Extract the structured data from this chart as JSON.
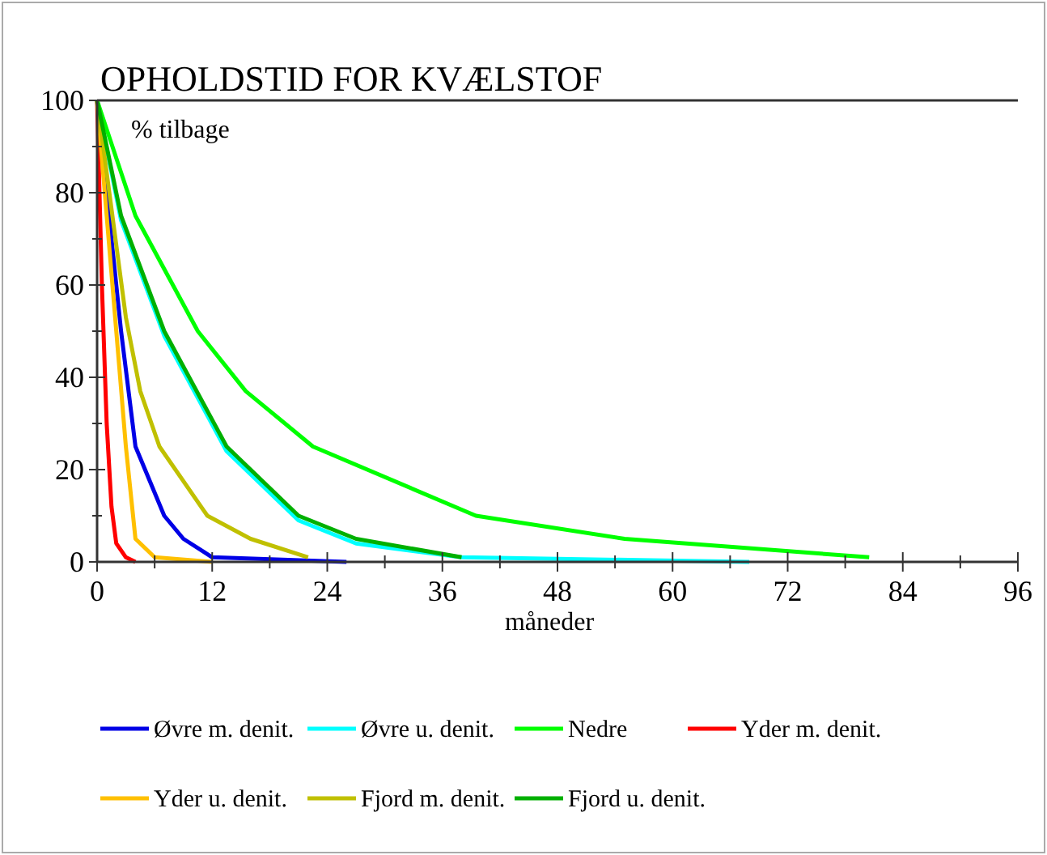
{
  "chart_data": {
    "type": "line",
    "title": "OPHOLDSTID FOR KVÆLSTOF",
    "ylabel": "% tilbage",
    "xlabel": "måneder",
    "xlim": [
      0,
      96
    ],
    "xticks": [
      0,
      {
        "value": 6,
        "label": null
      },
      12,
      {
        "value": 18,
        "label": null
      },
      24,
      {
        "value": 30,
        "label": null
      },
      36,
      {
        "value": 42,
        "label": null
      },
      48,
      {
        "value": 54,
        "label": null
      },
      60,
      {
        "value": 66,
        "label": null
      },
      72,
      {
        "value": 78,
        "label": null
      },
      84,
      {
        "value": 90,
        "label": null
      },
      96
    ],
    "ylim": [
      0,
      100
    ],
    "yticks": [
      0,
      {
        "value": 10,
        "label": null
      },
      20,
      {
        "value": 30,
        "label": null
      },
      40,
      {
        "value": 50,
        "label": null
      },
      60,
      {
        "value": 70,
        "label": null
      },
      80,
      {
        "value": 90,
        "label": null
      },
      100
    ],
    "grid": false,
    "legend": "bottom",
    "marker": "none",
    "line_style": "solid",
    "series": [
      {
        "name": "Øvre m. denit.",
        "color": "#0000e6",
        "x": [
          0,
          1,
          2.5,
          4,
          7,
          9,
          12,
          26
        ],
        "values": [
          100,
          80,
          50,
          25,
          10,
          5,
          1,
          0
        ]
      },
      {
        "name": "Øvre u. denit.",
        "color": "#00ffff",
        "x": [
          0,
          2.5,
          7,
          13.5,
          21,
          27,
          38,
          68
        ],
        "values": [
          100,
          74,
          49,
          24,
          9,
          4,
          1,
          0
        ]
      },
      {
        "name": "Nedre",
        "color": "#00ff00",
        "x": [
          0,
          4,
          10.5,
          15.5,
          22.5,
          39.5,
          55,
          80.5
        ],
        "values": [
          100,
          75,
          50,
          37,
          25,
          10,
          5,
          1
        ]
      },
      {
        "name": "Yder m. denit.",
        "color": "#ff0000",
        "x": [
          0,
          0.5,
          1,
          1.5,
          2,
          3,
          4
        ],
        "values": [
          100,
          60,
          30,
          12,
          4,
          1,
          0
        ]
      },
      {
        "name": "Yder u. denit.",
        "color": "#ffc000",
        "x": [
          0,
          1,
          2,
          3,
          4,
          6,
          12
        ],
        "values": [
          100,
          75,
          50,
          25,
          5,
          1,
          0
        ]
      },
      {
        "name": "Fjord m. denit.",
        "color": "#c0c000",
        "x": [
          0,
          3,
          4.5,
          6.5,
          11.5,
          16,
          22
        ],
        "values": [
          100,
          53,
          37,
          25,
          10,
          5,
          1
        ]
      },
      {
        "name": "Fjord u. denit.",
        "color": "#00b000",
        "x": [
          0,
          2.5,
          7,
          13.5,
          21,
          27,
          38
        ],
        "values": [
          100,
          75,
          50,
          25,
          10,
          5,
          1
        ]
      }
    ]
  }
}
